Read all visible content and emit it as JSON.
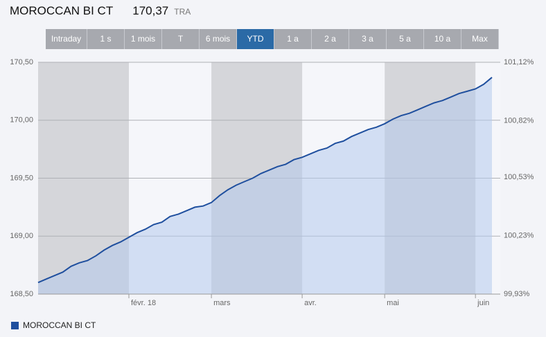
{
  "header": {
    "title": "MOROCCAN BI CT",
    "last": "170,37",
    "currency": "TRA"
  },
  "range_buttons": {
    "labels": [
      "Intraday",
      "1 s",
      "1 mois",
      "T",
      "6 mois",
      "YTD",
      "1 a",
      "2 a",
      "3 a",
      "5 a",
      "10 a",
      "Max"
    ],
    "selected_index": 5
  },
  "chart_data": {
    "type": "area",
    "categories": [
      null,
      null,
      null,
      null,
      null,
      null,
      null,
      null,
      null,
      null,
      null,
      "févr. 18",
      null,
      null,
      null,
      null,
      null,
      null,
      null,
      null,
      null,
      "mars",
      null,
      null,
      null,
      null,
      null,
      null,
      null,
      null,
      null,
      null,
      "avr.",
      null,
      null,
      null,
      null,
      null,
      null,
      null,
      null,
      null,
      "mai",
      null,
      null,
      null,
      null,
      null,
      null,
      null,
      null,
      null,
      null,
      "juin",
      null,
      null
    ],
    "series": [
      {
        "name": "MOROCCAN BI CT",
        "color": "#1f4f9e",
        "values": [
          168.6,
          168.63,
          168.66,
          168.69,
          168.74,
          168.77,
          168.79,
          168.83,
          168.88,
          168.92,
          168.95,
          168.99,
          169.03,
          169.06,
          169.1,
          169.12,
          169.17,
          169.19,
          169.22,
          169.25,
          169.26,
          169.29,
          169.35,
          169.4,
          169.44,
          169.47,
          169.5,
          169.54,
          169.57,
          169.6,
          169.62,
          169.66,
          169.68,
          169.71,
          169.74,
          169.76,
          169.8,
          169.82,
          169.86,
          169.89,
          169.92,
          169.94,
          169.97,
          170.01,
          170.04,
          170.06,
          170.09,
          170.12,
          170.15,
          170.17,
          170.2,
          170.23,
          170.25,
          170.27,
          170.31,
          170.37
        ]
      }
    ],
    "ylim": [
      168.5,
      170.5
    ],
    "yticks": [
      {
        "value": 168.5,
        "label": "168,50"
      },
      {
        "value": 169,
        "label": "169,00"
      },
      {
        "value": 169.5,
        "label": "169,50"
      },
      {
        "value": 170,
        "label": "170,00"
      },
      {
        "value": 170.5,
        "label": "170,50"
      }
    ],
    "y2lim": [
      99.93,
      101.12
    ],
    "y2ticks": [
      {
        "value": 99.93,
        "label": "99,93%"
      },
      {
        "value": 100.23,
        "label": "100,23%"
      },
      {
        "value": 100.53,
        "label": "100,53%"
      },
      {
        "value": 100.82,
        "label": "100,82%"
      },
      {
        "value": 101.12,
        "label": "101,12%"
      }
    ],
    "grid": true,
    "legend": "bottom-left"
  }
}
